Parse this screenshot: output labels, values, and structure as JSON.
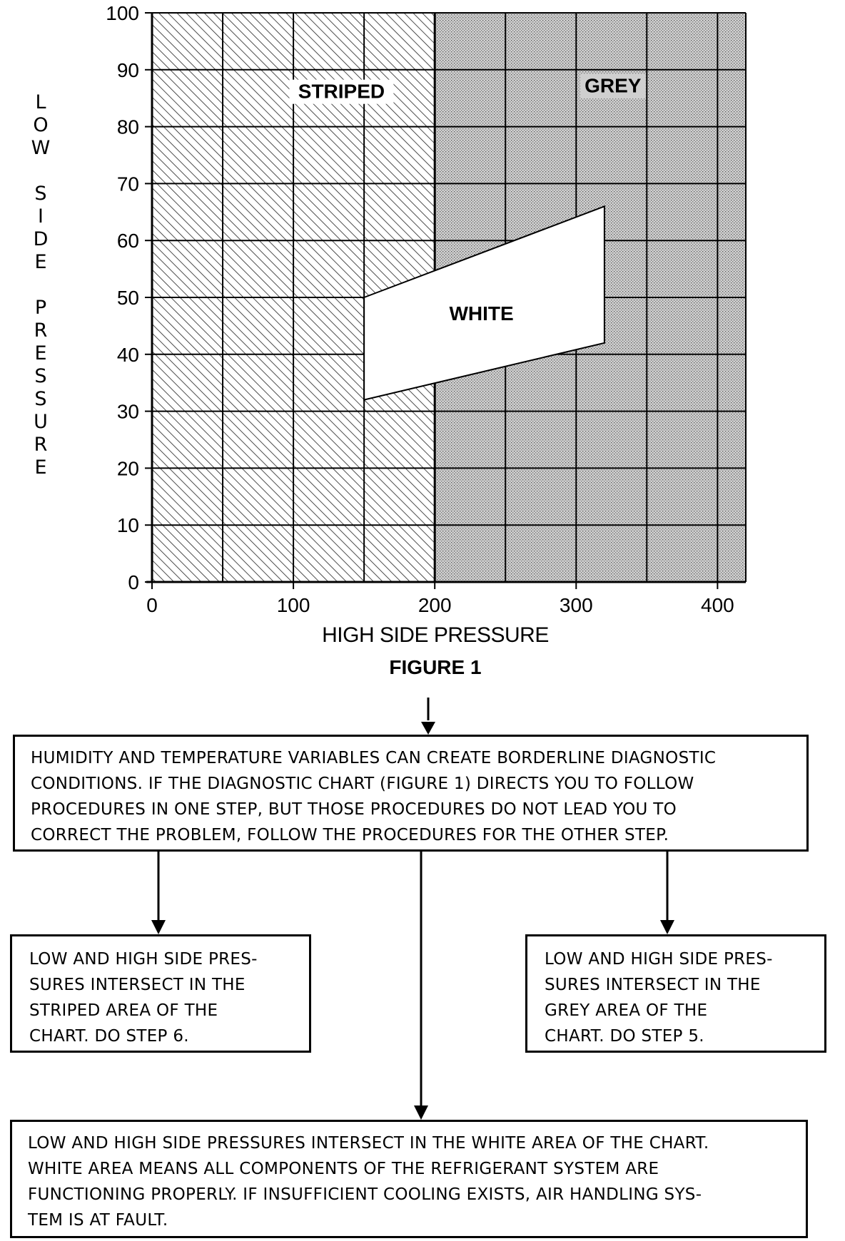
{
  "chart_data": {
    "type": "region-chart",
    "xlabel": "HIGH SIDE PRESSURE",
    "ylabel": "LOW SIDE PRESSURE",
    "xlim": [
      0,
      420
    ],
    "ylim": [
      0,
      100
    ],
    "xticks": [
      0,
      100,
      200,
      300,
      400
    ],
    "yticks": [
      0,
      10,
      20,
      30,
      40,
      50,
      60,
      70,
      80,
      90,
      100
    ],
    "grid_minor_x": [
      50,
      100,
      150,
      200,
      250,
      300,
      350,
      400
    ],
    "regions": [
      {
        "name": "STRIPED",
        "fill": "hatched",
        "x_range": [
          0,
          200
        ],
        "label_at": [
          134,
          85
        ]
      },
      {
        "name": "GREY",
        "fill": "stippled",
        "x_range": [
          200,
          420
        ],
        "label_at": [
          326,
          86
        ]
      },
      {
        "name": "WHITE",
        "fill": "white",
        "polygon": [
          [
            150,
            50
          ],
          [
            320,
            66
          ],
          [
            320,
            42
          ],
          [
            150,
            32
          ]
        ],
        "label_at": [
          233,
          46
        ]
      }
    ]
  },
  "figure": {
    "title": "FIGURE 1",
    "ylabel_words": [
      "LOW",
      "SIDE",
      "PRESSURE"
    ]
  },
  "boxes": {
    "main": [
      "HUMIDITY AND TEMPERATURE VARIABLES CAN CREATE BORDERLINE DIAGNOSTIC",
      "CONDITIONS. IF THE DIAGNOSTIC CHART (FIGURE 1) DIRECTS YOU TO FOLLOW",
      "PROCEDURES IN ONE STEP, BUT THOSE PROCEDURES DO NOT LEAD YOU TO",
      "CORRECT THE PROBLEM, FOLLOW THE PROCEDURES FOR THE OTHER STEP."
    ],
    "striped": [
      "LOW AND HIGH SIDE PRES-",
      "SURES INTERSECT IN THE",
      "STRIPED AREA OF THE",
      "CHART. DO STEP 6."
    ],
    "grey": [
      "LOW AND HIGH SIDE PRES-",
      "SURES INTERSECT IN THE",
      "GREY AREA OF THE",
      "CHART. DO STEP 5."
    ],
    "white": [
      "LOW AND HIGH SIDE PRESSURES INTERSECT IN THE WHITE AREA OF THE CHART.",
      "WHITE AREA MEANS ALL COMPONENTS OF THE REFRIGERANT SYSTEM ARE",
      "FUNCTIONING PROPERLY. IF INSUFFICIENT COOLING EXISTS, AIR HANDLING SYS-",
      "TEM IS AT FAULT."
    ]
  }
}
